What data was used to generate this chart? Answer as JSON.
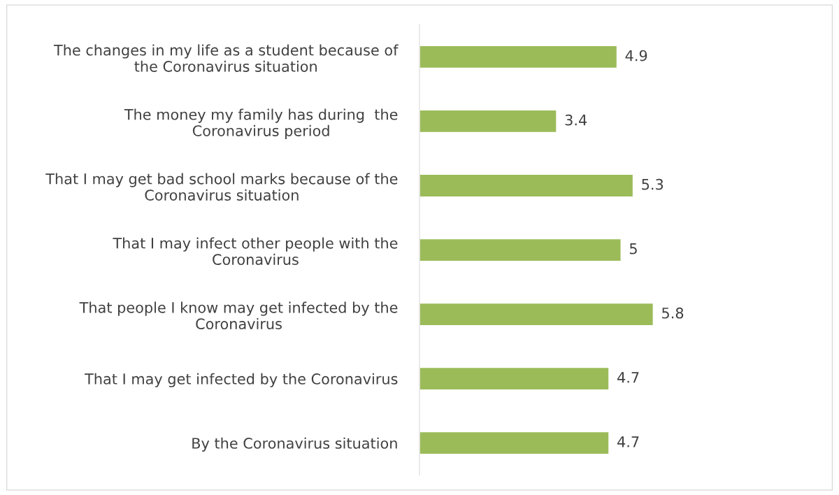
{
  "chart_data": {
    "type": "bar",
    "orientation": "horizontal",
    "categories": [
      "The changes in my life as a student because of\nthe Coronavirus situation",
      "The money my family has during  the\nCoronavirus period",
      "That I may get bad school marks because of the\nCoronavirus situation",
      "That I may infect other people with the\nCoronavirus",
      "That people I know may get infected by the\nCoronavirus",
      "That I may get infected by the Coronavirus",
      "By the Coronavirus situation"
    ],
    "values": [
      4.9,
      3.4,
      5.3,
      5,
      5.8,
      4.7,
      4.7
    ],
    "color": "#9bbb59",
    "xlim": [
      0,
      10.2
    ],
    "data_labels": true,
    "tick_labels": "y",
    "grid": false,
    "legend": false
  }
}
